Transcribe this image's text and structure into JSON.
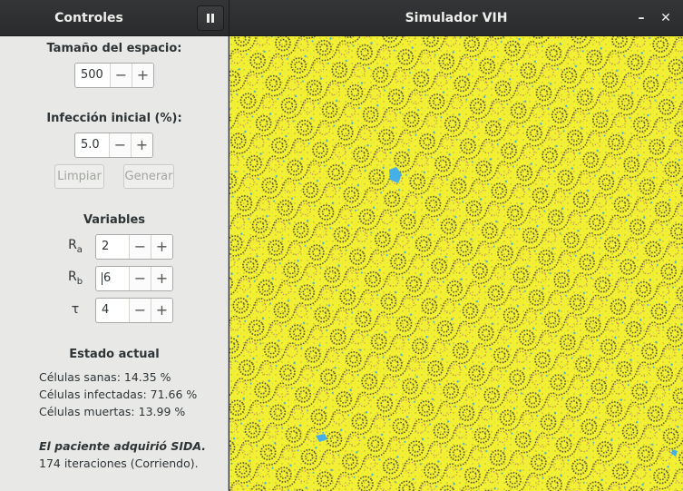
{
  "header": {
    "sidebar_title": "Controles",
    "window_title": "Simulador VIH",
    "minimize_glyph": "–",
    "close_glyph": "✕"
  },
  "controls": {
    "space_size_label": "Tamaño del espacio:",
    "space_size_value": "500",
    "initial_infection_label": "Infección inicial (%):",
    "initial_infection_value": "5.0",
    "clear_button": "Limpiar",
    "generate_button": "Generar",
    "minus": "−",
    "plus": "+"
  },
  "variables": {
    "title": "Variables",
    "ra_label": "R",
    "ra_sub": "a",
    "ra_value": "2",
    "rb_label": "R",
    "rb_sub": "b",
    "rb_value": "6",
    "tau_label": "τ",
    "tau_value": "4"
  },
  "state": {
    "title": "Estado actual",
    "healthy": "Células sanas: 14.35 %",
    "infected": "Células infectadas: 71.66 %",
    "dead": "Células muertas: 13.99 %",
    "message": "El paciente adquirió SIDA.",
    "iterations": "174 iteraciones (Corriendo)."
  },
  "simulation": {
    "colors": {
      "infected": "#f3ef33",
      "dead": "#4a4a33",
      "healthy": "#45b0e8",
      "mixed": "#a36a7a"
    }
  },
  "icons": {
    "pause": "pause-icon",
    "minimize": "minimize-icon",
    "close": "close-icon"
  }
}
